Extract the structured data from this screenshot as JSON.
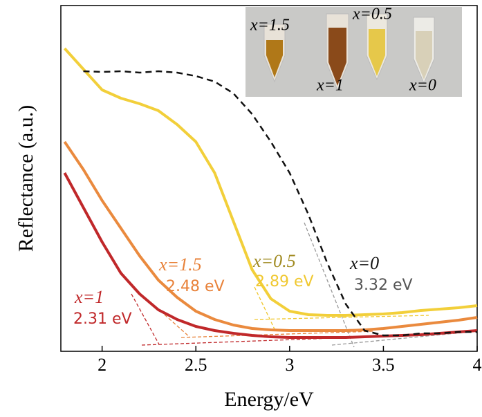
{
  "chart_data": {
    "type": "line",
    "xlabel": "Energy/eV",
    "ylabel": "Reflectance (a.u.)",
    "xlim": [
      1.78,
      4.0
    ],
    "ylim": [
      0,
      100
    ],
    "xticks": [
      2,
      2.5,
      3,
      3.5,
      4
    ],
    "x": [
      1.8,
      1.9,
      2.0,
      2.1,
      2.2,
      2.3,
      2.4,
      2.5,
      2.6,
      2.7,
      2.8,
      2.9,
      3.0,
      3.1,
      3.2,
      3.3,
      3.4,
      3.5,
      3.6,
      3.7,
      3.8,
      3.9,
      4.0
    ],
    "series": [
      {
        "name": "x=0.5",
        "color": "#f2cf3a",
        "dashed": false,
        "values": [
          87.6,
          81.6,
          75.6,
          73.2,
          71.6,
          69.6,
          65.6,
          60.6,
          51.6,
          37.6,
          23.6,
          15.2,
          11.6,
          10.6,
          10.4,
          10.4,
          10.6,
          10.8,
          11.2,
          11.8,
          12.2,
          12.6,
          13.2
        ]
      },
      {
        "name": "x=1.5",
        "color": "#ea8a3e",
        "dashed": false,
        "values": [
          60.6,
          52.6,
          43.6,
          35.6,
          27.6,
          20.6,
          15.6,
          11.6,
          9.2,
          7.6,
          6.6,
          6.2,
          6,
          6,
          6,
          6,
          6.2,
          6.6,
          7.2,
          7.8,
          8.4,
          9,
          9.8
        ]
      },
      {
        "name": "x=1",
        "color": "#c0282a",
        "dashed": false,
        "values": [
          51.6,
          41.6,
          31.6,
          22.6,
          16.6,
          12,
          9.2,
          7.2,
          6,
          5.2,
          4.6,
          4.2,
          4,
          4,
          4,
          4,
          4.2,
          4.4,
          4.6,
          4.8,
          5.2,
          5.6,
          6
        ]
      },
      {
        "name": "x=0",
        "color": "#111111",
        "dashed": true,
        "values": [
          null,
          81,
          80.8,
          81,
          80.6,
          81,
          80.6,
          79.6,
          78,
          74.6,
          68.6,
          60.6,
          51.6,
          39.6,
          25.6,
          13.6,
          6,
          4.6,
          4.6,
          5.2,
          5.2,
          5.6,
          5.6
        ]
      }
    ],
    "annotations": [
      {
        "label": "x=1",
        "value": "2.31 eV",
        "label_color": "#c0282a",
        "value_color": "#c0282a"
      },
      {
        "label": "x=1.5",
        "value": "2.48 eV",
        "label_color": "#e8823a",
        "value_color": "#e8823a"
      },
      {
        "label": "x=0.5",
        "value": "2.89 eV",
        "label_color": "#a08a20",
        "value_color": "#f0c830"
      },
      {
        "label": "x=0",
        "value": "3.32 eV",
        "label_color": "#111111",
        "value_color": "#555555"
      }
    ],
    "inset_labels": [
      "x=1.5",
      "x=1",
      "x=0.5",
      "x=0"
    ]
  }
}
